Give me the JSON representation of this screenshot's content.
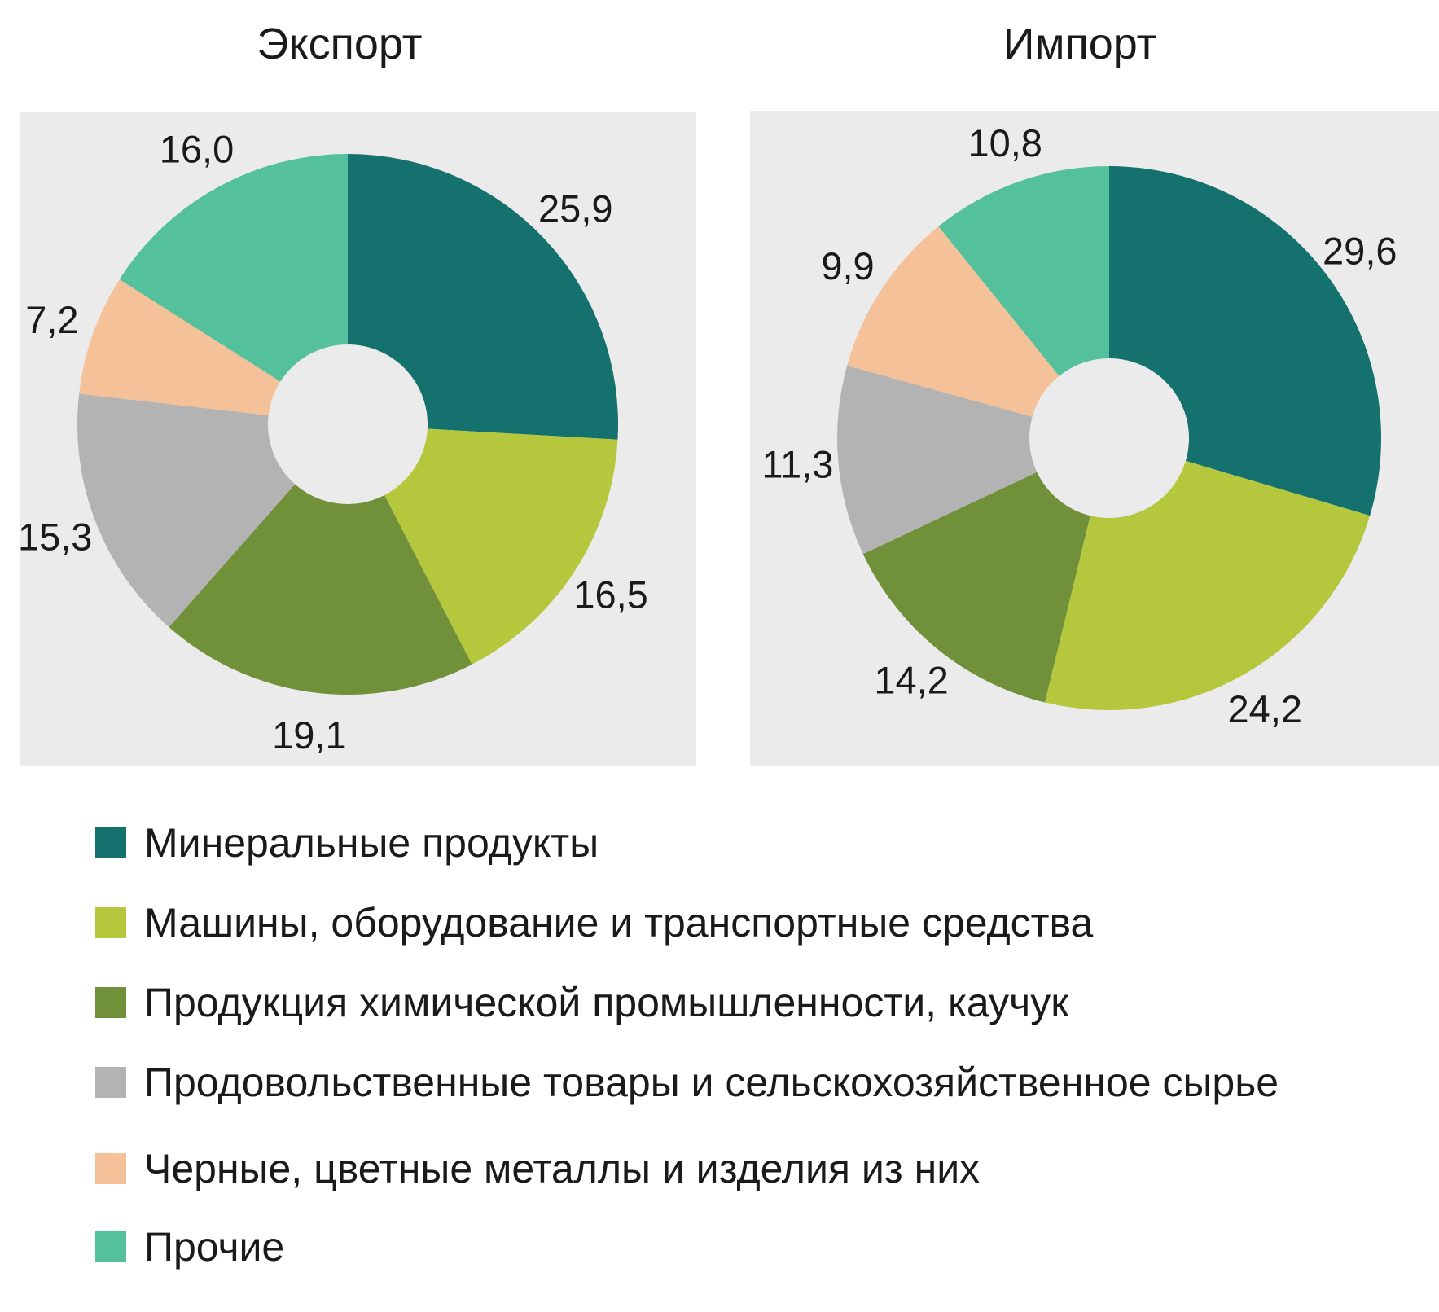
{
  "colors": {
    "mineral": "#15716e",
    "machinery": "#b5c83d",
    "chemical": "#70913a",
    "food": "#b3b3b3",
    "metals": "#f5c198",
    "other": "#54c09c",
    "panel_bg": "#ebebec"
  },
  "chart_data": [
    {
      "type": "pie",
      "variant": "donut",
      "title": "Экспорт",
      "categories": [
        "Минеральные продукты",
        "Машины, оборудование и транспортные средства",
        "Продукция химической промышленности, каучук",
        "Продовольственные товары и сельскохозяйственное сырье",
        "Черные, цветные металлы и изделия из них",
        "Прочие"
      ],
      "values": [
        25.9,
        16.5,
        19.1,
        15.3,
        7.2,
        16.0
      ],
      "value_labels": [
        "25,9",
        "16,5",
        "19,1",
        "15,3",
        "7,2",
        "16,0"
      ]
    },
    {
      "type": "pie",
      "variant": "donut",
      "title": "Импорт",
      "categories": [
        "Минеральные продукты",
        "Машины, оборудование и транспортные средства",
        "Продукция химической промышленности, каучук",
        "Продовольственные товары и сельскохозяйственное сырье",
        "Черные, цветные металлы и изделия из них",
        "Прочие"
      ],
      "values": [
        29.6,
        24.2,
        14.2,
        11.3,
        9.9,
        10.8
      ],
      "value_labels": [
        "29,6",
        "24,2",
        "14,2",
        "11,3",
        "9,9",
        "10,8"
      ]
    }
  ],
  "legend": {
    "position": "bottom",
    "items": [
      {
        "label": "Минеральные продукты",
        "color": "#15716e"
      },
      {
        "label": "Машины, оборудование и транспортные средства",
        "color": "#b5c83d"
      },
      {
        "label": "Продукция химической промышленности, каучук",
        "color": "#70913a"
      },
      {
        "label": "Продовольственные товары и сельскохозяйственное сырье",
        "color": "#b3b3b3"
      },
      {
        "label": "Черные, цветные металлы и изделия из них",
        "color": "#f5c198"
      },
      {
        "label": "Прочие",
        "color": "#54c09c"
      }
    ]
  }
}
